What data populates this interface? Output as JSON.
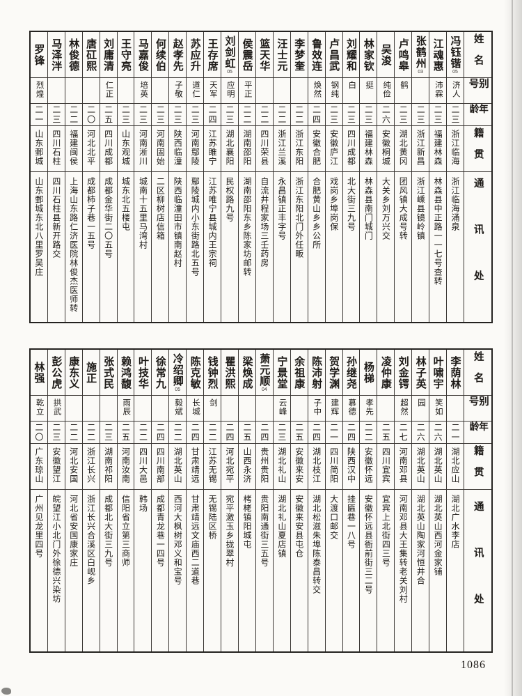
{
  "page_number": "1086",
  "headers": {
    "name": "姓名",
    "alias": "别号",
    "age": "年龄",
    "origin": "籍贯",
    "address": "通讯处"
  },
  "tables": [
    {
      "entries": [
        {
          "name": "冯钰锴",
          "note": "05",
          "alias": "济人",
          "age": "二三",
          "origin": "浙江临海",
          "address": "浙江临海涌泉"
        },
        {
          "name": "江魂惠",
          "note": "",
          "alias": "沛霖",
          "age": "二三",
          "origin": "福建林森",
          "address": "林森县中正路一一七号查转"
        },
        {
          "name": "张鹤州",
          "note": "03",
          "alias": "",
          "age": "二三",
          "origin": "浙江新昌",
          "address": "浙江嵊县镜岭镇"
        },
        {
          "name": "卢鸣皋",
          "note": "",
          "alias": "鹤",
          "age": "二三",
          "origin": "湖北黄冈",
          "address": "团风镇大成号转"
        },
        {
          "name": "吴浚",
          "note": "",
          "alias": "纯俭",
          "age": "二六",
          "origin": "安徽桐城",
          "address": "大关乡刘万兴交"
        },
        {
          "name": "林家钦",
          "note": "",
          "alias": "挺",
          "age": "二三",
          "origin": "福建林森",
          "address": "林森县南门城门"
        },
        {
          "name": "刘耀和",
          "note": "",
          "alias": "白",
          "age": "二三",
          "origin": "四川成都",
          "address": "北大街三九号"
        },
        {
          "name": "卢昌武",
          "note": "",
          "alias": "钢纯",
          "age": "二三",
          "origin": "安徽庐江",
          "address": "戏岗乡埠岗保"
        },
        {
          "name": "鲁效连",
          "note": "",
          "alias": "焕然",
          "age": "二四",
          "origin": "安徽合肥",
          "address": "合肥黄山乡乡公所"
        },
        {
          "name": "李梦奎",
          "note": "",
          "alias": "",
          "age": "二二",
          "origin": "浙江东阳",
          "address": "浙江东阳北门外任畈"
        },
        {
          "name": "汪士元",
          "note": "",
          "alias": "",
          "age": "二二",
          "origin": "浙江兰溪",
          "address": "永昌镇正丰字号"
        },
        {
          "name": "篮天华",
          "note": "",
          "alias": "",
          "age": "二二",
          "origin": "四川荣县",
          "address": "自流井程家场三壬药房"
        },
        {
          "name": "侯震岳",
          "note": "",
          "alias": "平正",
          "age": "二二",
          "origin": "湖南邵阳",
          "address": "湖南邵阳东乡陈家坊邮转"
        },
        {
          "name": "刘剑虹",
          "note": "05",
          "alias": "应明",
          "age": "二三",
          "origin": "湖北襄阳",
          "address": "民权路九号"
        },
        {
          "name": "王存席",
          "note": "",
          "alias": "天军",
          "age": "二四",
          "origin": "江苏睢宁",
          "address": "江苏唯宁县城内王宗祠"
        },
        {
          "name": "苏应升",
          "note": "",
          "alias": "道仁",
          "age": "二三",
          "origin": "河南鄢陵",
          "address": "鄢陵城内小东街路北五号"
        },
        {
          "name": "赵孝先",
          "note": "",
          "alias": "子敬",
          "age": "二三",
          "origin": "陕西临潼",
          "address": "陕西临潼田市镇南赵村"
        },
        {
          "name": "何续伯",
          "note": "",
          "alias": "",
          "age": "二三",
          "origin": "河南固始",
          "address": "二区柳树店信箱"
        },
        {
          "name": "马嘉俊",
          "note": "",
          "alias": "培英",
          "age": "二三",
          "origin": "河南淅川",
          "address": "城南十五里马湾村"
        },
        {
          "name": "王守亮",
          "note": "",
          "alias": "",
          "age": "二三",
          "origin": "山东观城",
          "address": "城东北五楼屯"
        },
        {
          "name": "刘庸清",
          "note": "",
          "alias": "仁正",
          "age": "二五",
          "origin": "四川成都",
          "address": "成都金华街二〇五号"
        },
        {
          "name": "唐矼熙",
          "note": "",
          "alias": "",
          "age": "二〇",
          "origin": "河北北平",
          "address": "成都柿子巷一五号"
        },
        {
          "name": "林俊德",
          "note": "",
          "alias": "",
          "age": "二二",
          "origin": "福建闽侯",
          "address": "上海山东路仁济医院林俊杰医师转"
        },
        {
          "name": "马泽泮",
          "note": "",
          "alias": "",
          "age": "二三",
          "origin": "四川石柱",
          "address": "四川石柱县新开路交"
        },
        {
          "name": "罗锋",
          "note": "",
          "alias": "烈煌",
          "age": "二一",
          "origin": "山东鄄城",
          "address": "山东鄄城东北八里罗吴庄"
        }
      ]
    },
    {
      "entries": [
        {
          "name": "李荫林",
          "note": "",
          "alias": "",
          "age": "二一",
          "origin": "湖北应山",
          "address": "湖北广水李店"
        },
        {
          "name": "叶啸宇",
          "note": "",
          "alias": "笑如",
          "age": "二六",
          "origin": "湖北英山",
          "address": "湖北英山西河金家铺"
        },
        {
          "name": "林子英",
          "note": "",
          "alias": "园",
          "age": "二六",
          "origin": "湖北英山",
          "address": "湖北英山陶家河恒井合"
        },
        {
          "name": "刘金锷",
          "note": "",
          "alias": "超然",
          "age": "二七",
          "origin": "河南邓县",
          "address": "河南邓县大王集转老关刘村"
        },
        {
          "name": "凌仲康",
          "note": "",
          "alias": "",
          "age": "二五",
          "origin": "四川宜宾",
          "address": "宜宾上北街四三号"
        },
        {
          "name": "杨梯",
          "note": "",
          "alias": "孝先",
          "age": "二二",
          "origin": "安徽怀远",
          "address": "安徽怀远县衙前街三二号"
        },
        {
          "name": "孙继尧",
          "note": "",
          "alias": "慕德",
          "age": "二四",
          "origin": "陕西汉中",
          "address": "挂匾巷一八号"
        },
        {
          "name": "贺学渊",
          "note": "",
          "alias": "建辉",
          "age": "二一",
          "origin": "四川简阳",
          "address": "大渡口邮交"
        },
        {
          "name": "陈沛射",
          "note": "",
          "alias": "子中",
          "age": "二四",
          "origin": "湖北枝江",
          "address": "湖北松滋朱埠陈泰昌转交"
        },
        {
          "name": "余祖康",
          "note": "",
          "alias": "",
          "age": "二五",
          "origin": "安徽来安",
          "address": "安徽来安县屯仓"
        },
        {
          "name": "宁景堂",
          "note": "",
          "alias": "云峰",
          "age": "二三",
          "origin": "湖北礼山",
          "address": "湖北礼山夏店镇"
        },
        {
          "name": "萧元顺",
          "note": "04",
          "alias": "",
          "age": "二四",
          "origin": "贵州贵阳",
          "address": "贵阳南通街三五号"
        },
        {
          "name": "梁焕成",
          "note": "",
          "alias": "",
          "age": "二五",
          "origin": "山西永济",
          "address": "栲栳镇阳城屯"
        },
        {
          "name": "瞿洪熙",
          "note": "",
          "alias": "",
          "age": "二四",
          "origin": "河北宛平",
          "address": "宛平激玉乡拢翠村"
        },
        {
          "name": "钱钟烈",
          "note": "",
          "alias": "剑",
          "age": "二二",
          "origin": "江苏无锡",
          "address": "无锡陆区桥"
        },
        {
          "name": "陈克敏",
          "note": "",
          "alias": "长城",
          "age": "二四",
          "origin": "甘肃靖远",
          "address": "甘肃靖远文庙西二道巷"
        },
        {
          "name": "冷绍卿",
          "note": "05",
          "alias": "毅斌",
          "age": "二二",
          "origin": "湖北英山",
          "address": "西河大枫树邓义和宝号"
        },
        {
          "name": "徐常九",
          "note": "",
          "alias": "",
          "age": "二四",
          "origin": "四川南部",
          "address": "成都青龙巷一四号"
        },
        {
          "name": "叶技华",
          "note": "",
          "alias": "",
          "age": "二二",
          "origin": "四川大邑",
          "address": "韩场"
        },
        {
          "name": "赖鸿馥",
          "note": "",
          "alias": "雨辰",
          "age": "二五",
          "origin": "河南汝南",
          "address": "信阳省立第三商师"
        },
        {
          "name": "张式民",
          "note": "",
          "alias": "",
          "age": "二三",
          "origin": "湖南祁阳",
          "address": "成都北大街三九号"
        },
        {
          "name": "施正",
          "note": "",
          "alias": "",
          "age": "二二",
          "origin": "浙江长兴",
          "address": "浙江长兴合溪区白岘乡"
        },
        {
          "name": "康东义",
          "note": "",
          "alias": "",
          "age": "二二",
          "origin": "河北安国",
          "address": "河北省安国康家庄"
        },
        {
          "name": "彭公虎",
          "note": "",
          "alias": "拱武",
          "age": "二三",
          "origin": "安徽望江",
          "address": "皖望江小北门外徐德兴染坊"
        },
        {
          "name": "林强",
          "note": "",
          "alias": "乾立",
          "age": "二〇",
          "origin": "广东琼山",
          "address": "广州见龙里四号"
        }
      ]
    }
  ]
}
